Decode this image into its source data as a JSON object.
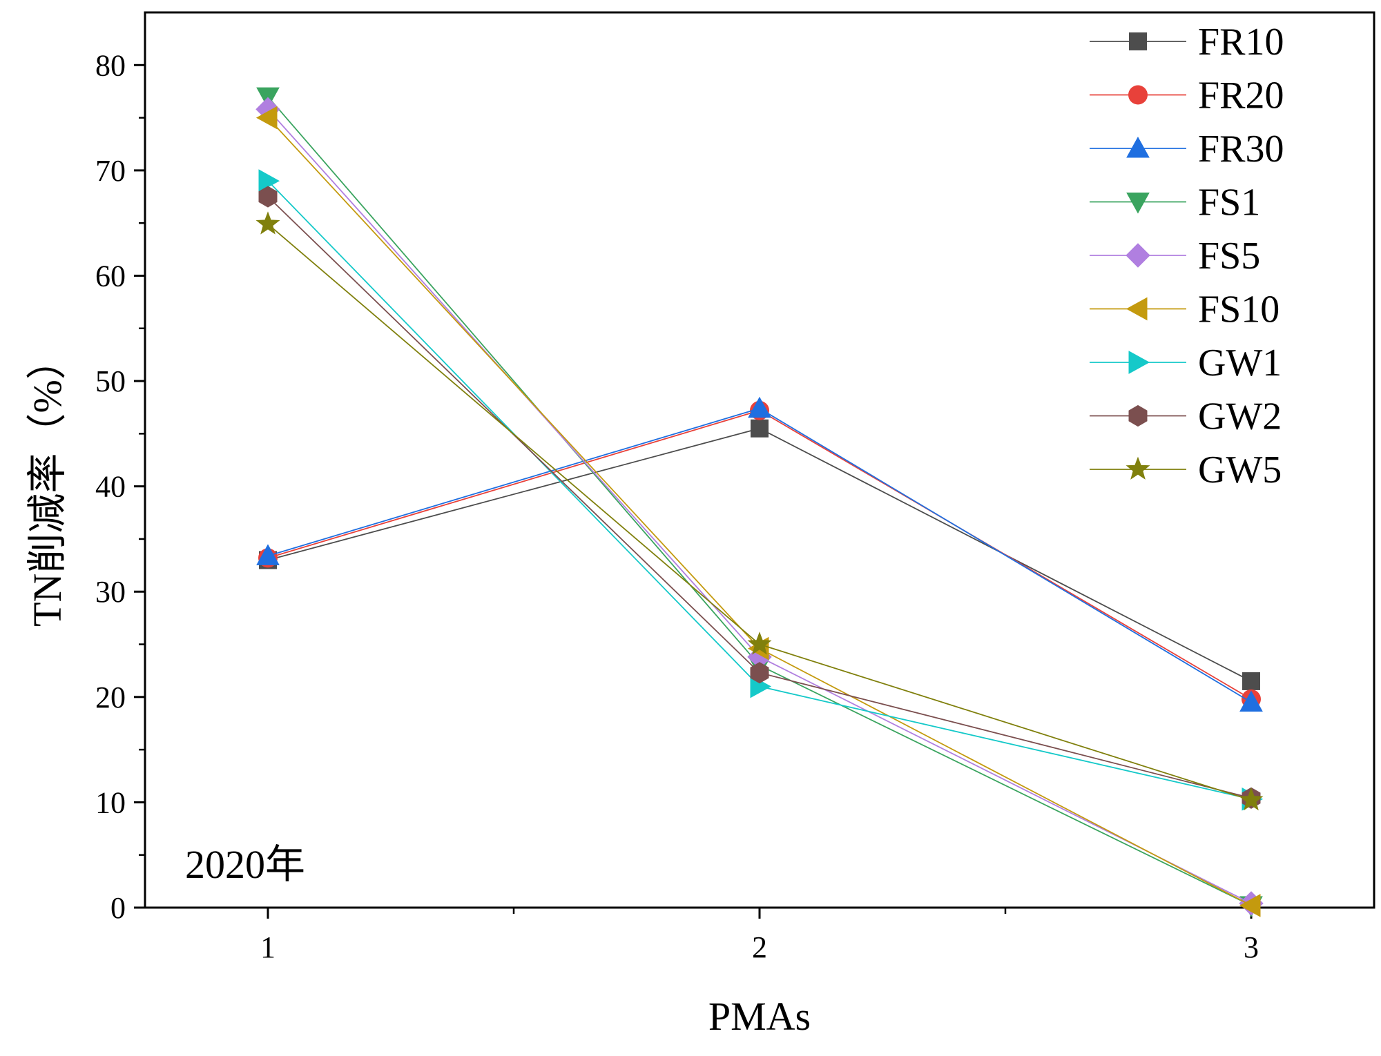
{
  "chart_data": {
    "type": "line",
    "title": "",
    "xlabel": "PMAs",
    "ylabel": "TN削减率（%）",
    "annotation": "2020年",
    "x": [
      1,
      2,
      3
    ],
    "x_tick_labels": [
      "1",
      "2",
      "3"
    ],
    "xlim": [
      0.75,
      3.25
    ],
    "ylim": [
      0,
      85
    ],
    "y_ticks": [
      0,
      10,
      20,
      30,
      40,
      50,
      60,
      70,
      80
    ],
    "y_tick_labels": [
      "0",
      "10",
      "20",
      "30",
      "40",
      "50",
      "60",
      "70",
      "80"
    ],
    "grid": false,
    "legend_position": "top-right",
    "series": [
      {
        "name": "FR10",
        "marker": "square",
        "color": "#4d4d4d",
        "values": [
          33.0,
          45.5,
          21.5
        ]
      },
      {
        "name": "FR20",
        "marker": "circle",
        "color": "#e8413a",
        "values": [
          33.2,
          47.2,
          19.8
        ]
      },
      {
        "name": "FR30",
        "marker": "triangle-up",
        "color": "#1f6fe0",
        "values": [
          33.4,
          47.4,
          19.5
        ]
      },
      {
        "name": "FS1",
        "marker": "triangle-down",
        "color": "#3aa45f",
        "values": [
          77.0,
          23.0,
          0.2
        ]
      },
      {
        "name": "FS5",
        "marker": "diamond",
        "color": "#b07fe0",
        "values": [
          75.8,
          23.8,
          0.4
        ]
      },
      {
        "name": "FS10",
        "marker": "triangle-left",
        "color": "#c49a0e",
        "values": [
          75.0,
          24.6,
          0.2
        ]
      },
      {
        "name": "GW1",
        "marker": "triangle-right",
        "color": "#15c9c9",
        "values": [
          69.0,
          21.0,
          10.3
        ]
      },
      {
        "name": "GW2",
        "marker": "hexagon",
        "color": "#7b4f4f",
        "values": [
          67.5,
          22.3,
          10.4
        ]
      },
      {
        "name": "GW5",
        "marker": "star",
        "color": "#80800d",
        "values": [
          64.9,
          25.0,
          10.2
        ]
      }
    ]
  }
}
